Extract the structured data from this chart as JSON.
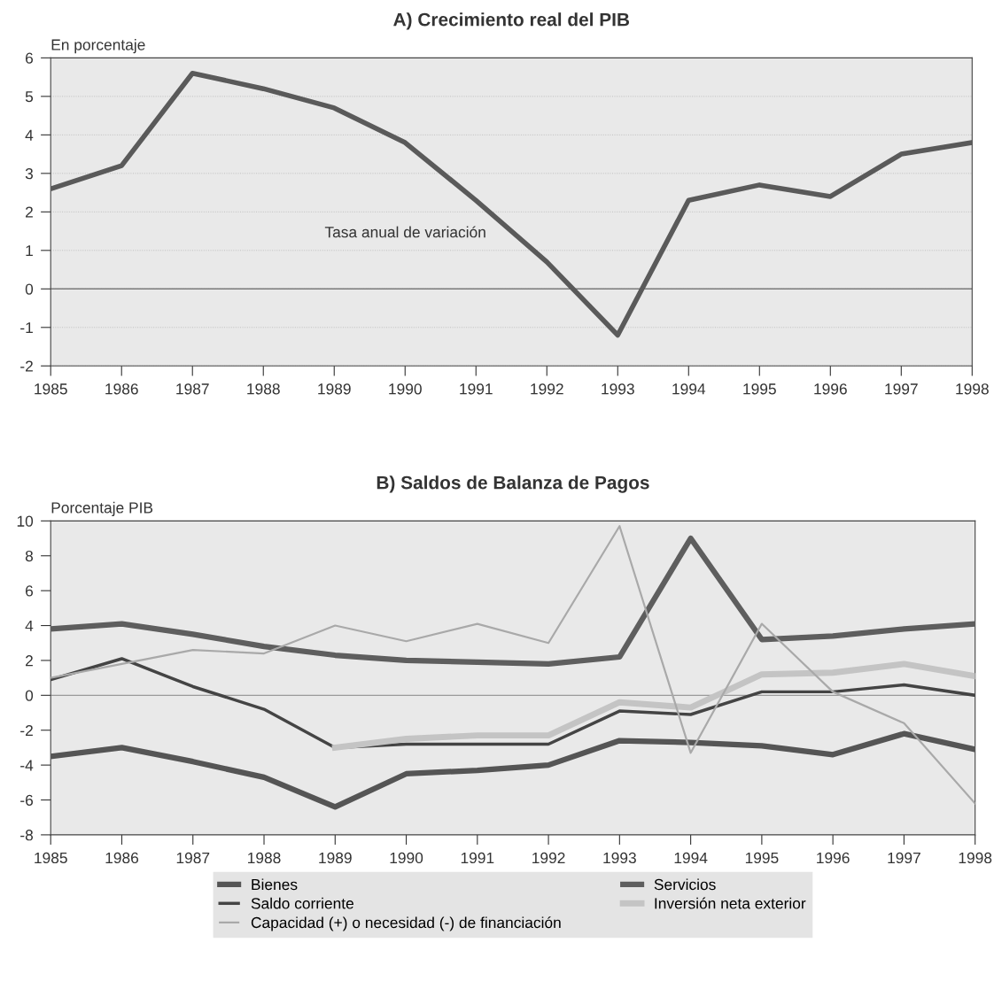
{
  "chart_data": [
    {
      "type": "line",
      "title": "A) Crecimiento real del PIB",
      "ylabel": "En porcentaje",
      "x": [
        1985,
        1986,
        1987,
        1988,
        1989,
        1990,
        1991,
        1992,
        1993,
        1994,
        1995,
        1996,
        1997,
        1998
      ],
      "series": [
        {
          "color": "#5a5a5a",
          "values": [
            2.6,
            3.2,
            5.6,
            5.2,
            4.7,
            3.8,
            2.3,
            0.7,
            -1.2,
            2.3,
            2.7,
            2.4,
            3.5,
            3.8
          ]
        }
      ],
      "annotations": [
        "Tasa anual de variación"
      ],
      "xlim": [
        1985,
        1998
      ],
      "xticks": [
        1985,
        1986,
        1987,
        1988,
        1989,
        1990,
        1991,
        1992,
        1993,
        1994,
        1995,
        1996,
        1997,
        1998
      ],
      "ylim": [
        -2,
        6
      ],
      "yticks": [
        -2,
        -1,
        0,
        1,
        2,
        3,
        4,
        5,
        6
      ],
      "ref_lines": [
        {
          "axis": "y",
          "value": 0,
          "color": "#7a7a7a"
        }
      ],
      "grid": "y",
      "legend": false,
      "marker": "none",
      "line_style": "solid"
    },
    {
      "type": "line",
      "title": "B) Saldos de Balanza de Pagos",
      "ylabel": "Porcentaje PIB",
      "x": [
        1985,
        1986,
        1987,
        1988,
        1989,
        1990,
        1991,
        1992,
        1993,
        1994,
        1995,
        1996,
        1997,
        1998
      ],
      "series": [
        {
          "name": "Bienes",
          "color": "#555555",
          "values": [
            -3.5,
            -3.0,
            -3.8,
            -4.7,
            -6.4,
            -4.5,
            -4.3,
            -4.0,
            -2.6,
            -2.7,
            -2.9,
            -3.4,
            -2.2,
            -3.1
          ]
        },
        {
          "name": "Servicios",
          "color": "#5e5e5e",
          "values": [
            3.8,
            4.1,
            3.5,
            2.8,
            2.3,
            2.0,
            1.9,
            1.8,
            2.2,
            9.0,
            3.2,
            3.4,
            3.8,
            4.1
          ]
        },
        {
          "name": "Saldo corriente",
          "color": "#444444",
          "values": [
            0.9,
            2.1,
            0.5,
            -0.8,
            -3.0,
            -2.8,
            -2.8,
            -2.8,
            -0.9,
            -1.1,
            0.2,
            0.2,
            0.6,
            0.0
          ]
        },
        {
          "name": "Inversión neta exterior",
          "color": "#c4c4c4",
          "values": [
            null,
            null,
            null,
            null,
            -3.0,
            -2.5,
            -2.3,
            -2.3,
            -0.4,
            -0.7,
            1.2,
            1.3,
            1.8,
            1.1
          ]
        },
        {
          "name": "Capacidad (+) o necesidad (-) de financiación",
          "color": "#a9a9a9",
          "values": [
            1.0,
            1.8,
            2.6,
            2.4,
            4.0,
            3.1,
            4.1,
            3.0,
            9.7,
            -3.3,
            4.1,
            0.2,
            -1.6,
            -6.2
          ]
        }
      ],
      "xlim": [
        1985,
        1998
      ],
      "xticks": [
        1985,
        1986,
        1987,
        1988,
        1989,
        1990,
        1991,
        1992,
        1993,
        1994,
        1995,
        1996,
        1997,
        1998
      ],
      "ylim": [
        -8,
        10
      ],
      "yticks": [
        -8,
        -6,
        -4,
        -2,
        0,
        2,
        4,
        6,
        8,
        10
      ],
      "ref_lines": [
        {
          "axis": "y",
          "value": 0,
          "color": "#9a9a9a"
        }
      ],
      "grid": false,
      "legend": "bottom",
      "marker": "none",
      "line_style": "solid"
    }
  ]
}
